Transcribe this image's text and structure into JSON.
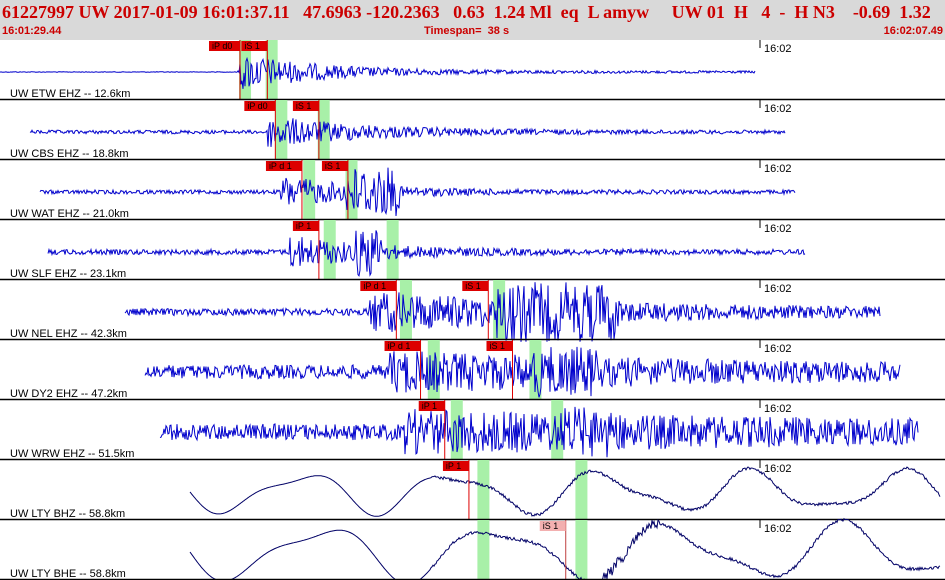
{
  "header": {
    "title": "61227997 UW 2017-01-09 16:01:37.11   47.6963 -120.2363   0.63  1.24 Ml  eq  L amyw     UW 01  H   4  -  H N3    -0.69  1.32",
    "start_time": "16:01:29.44",
    "timespan": "Timespan=  38 s",
    "end_time": "16:02:07.49"
  },
  "colors": {
    "header_bg": "#d9d9d9",
    "header_text": "#cc0000",
    "waveform": "#0000cc",
    "waveform_dark": "#000066",
    "pick": "#dd0000",
    "pick_light": "#f3b0b0",
    "window": "#a8f0a8"
  },
  "traces": [
    {
      "label": "UW ETW EHZ -- 12.6km",
      "time_label": "16:02",
      "picks": [
        {
          "text": "iP d0",
          "t": 0.14
        },
        {
          "text": "iS 1",
          "t": 1.27
        }
      ],
      "windows": [
        0.1,
        1.2
      ]
    },
    {
      "label": "UW CBS EHZ -- 18.8km",
      "time_label": "16:02",
      "picks": [
        {
          "text": "iP d0",
          "t": 1.6
        },
        {
          "text": "iS 1",
          "t": 3.4
        }
      ],
      "windows": [
        1.6,
        3.35
      ]
    },
    {
      "label": "UW WAT EHZ -- 21.0km",
      "time_label": "16:02",
      "picks": [
        {
          "text": "iP d 1",
          "t": 2.7
        },
        {
          "text": "iS 1",
          "t": 4.6
        }
      ],
      "windows": [
        2.75,
        4.5
      ]
    },
    {
      "label": "UW SLF EHZ -- 23.1km",
      "time_label": "16:02",
      "picks": [
        {
          "text": "iP 1",
          "t": 3.4
        }
      ],
      "windows": [
        3.6,
        6.2
      ]
    },
    {
      "label": "UW NEL EHZ -- 42.3km",
      "time_label": "16:02",
      "picks": [
        {
          "text": "iP d 1",
          "t": 6.6
        },
        {
          "text": "iS 1",
          "t": 10.4
        }
      ],
      "windows": [
        6.75,
        10.6
      ]
    },
    {
      "label": "UW DY2 EHZ -- 47.2km",
      "time_label": "16:02",
      "picks": [
        {
          "text": "iP d 1",
          "t": 7.6
        },
        {
          "text": "iS 1",
          "t": 11.4
        }
      ],
      "windows": [
        7.9,
        12.1
      ]
    },
    {
      "label": "UW WRW EHZ -- 51.5km",
      "time_label": "16:02",
      "picks": [
        {
          "text": "iP 1",
          "t": 8.6
        }
      ],
      "windows": [
        8.85,
        13.0
      ]
    },
    {
      "label": "UW LTY BHZ -- 58.8km",
      "time_label": "16:02",
      "picks": [
        {
          "text": "iP 1",
          "t": 9.6
        }
      ],
      "windows": [
        9.95,
        14.0
      ]
    },
    {
      "label": "UW LTY BHE -- 58.8km",
      "time_label": "16:02",
      "picks": [
        {
          "text": "iS 1",
          "t": 13.6,
          "faded": true
        }
      ],
      "windows": [
        9.95,
        14.0
      ]
    }
  ]
}
